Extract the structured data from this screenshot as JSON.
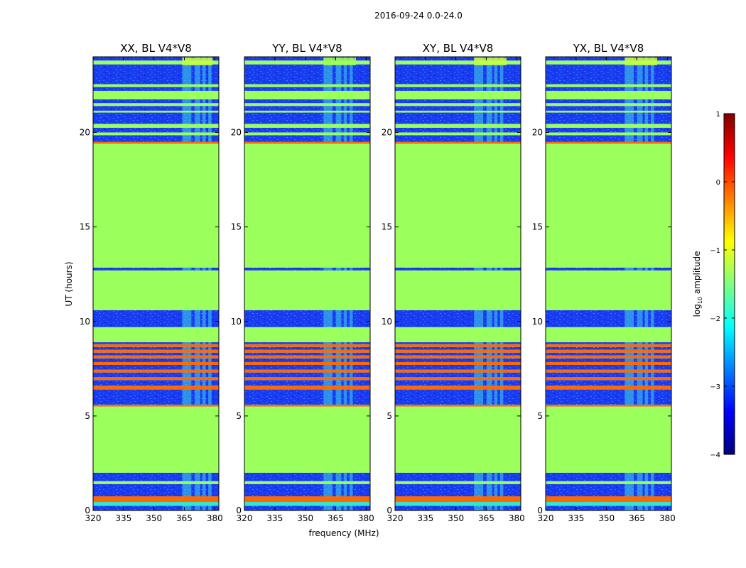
{
  "chart_data": {
    "type": "heatmap",
    "title": "2016-09-24 0.0-24.0",
    "xlabel": "frequency (MHz)",
    "ylabel": "UT (hours)",
    "xlim": [
      320,
      382
    ],
    "ylim": [
      0,
      24
    ],
    "x_ticks": [
      320,
      335,
      350,
      365,
      380
    ],
    "y_ticks": [
      0,
      5,
      10,
      15,
      20
    ],
    "panels": [
      {
        "title": "XX, BL V4*V8",
        "polarization": "XX",
        "rfi_band_mhz": [
          364,
          380
        ],
        "rfi_top_mhz": [
          364,
          379
        ]
      },
      {
        "title": "YY, BL V4*V8",
        "polarization": "YY",
        "rfi_band_mhz": [
          359,
          375
        ],
        "rfi_top_mhz": [
          359,
          375
        ]
      },
      {
        "title": "XY, BL V4*V8",
        "polarization": "XY",
        "rfi_band_mhz": [
          359,
          375
        ],
        "rfi_top_mhz": [
          359,
          375
        ]
      },
      {
        "title": "YX, BL V4*V8",
        "polarization": "YX",
        "rfi_band_mhz": [
          359,
          375
        ],
        "rfi_top_mhz": [
          359,
          375
        ]
      }
    ],
    "rows_hours": [
      {
        "from": 0.0,
        "to": 0.25,
        "level": "noise"
      },
      {
        "from": 0.25,
        "to": 0.45,
        "level": "cyan"
      },
      {
        "from": 0.45,
        "to": 0.75,
        "level": "orange"
      },
      {
        "from": 0.75,
        "to": 1.4,
        "level": "noise"
      },
      {
        "from": 1.4,
        "to": 1.55,
        "level": "green"
      },
      {
        "from": 1.55,
        "to": 2.0,
        "level": "noise"
      },
      {
        "from": 2.0,
        "to": 5.5,
        "level": "green"
      },
      {
        "from": 5.5,
        "to": 5.6,
        "level": "orange"
      },
      {
        "from": 5.6,
        "to": 6.4,
        "level": "noise"
      },
      {
        "from": 6.4,
        "to": 6.6,
        "level": "orange"
      },
      {
        "from": 6.6,
        "to": 6.9,
        "level": "noise"
      },
      {
        "from": 6.9,
        "to": 7.05,
        "level": "orange"
      },
      {
        "from": 7.05,
        "to": 7.3,
        "level": "noise"
      },
      {
        "from": 7.3,
        "to": 7.45,
        "level": "orange"
      },
      {
        "from": 7.45,
        "to": 7.7,
        "level": "noise"
      },
      {
        "from": 7.7,
        "to": 7.85,
        "level": "orange"
      },
      {
        "from": 7.85,
        "to": 8.05,
        "level": "noise"
      },
      {
        "from": 8.05,
        "to": 8.2,
        "level": "orange"
      },
      {
        "from": 8.2,
        "to": 8.35,
        "level": "noise"
      },
      {
        "from": 8.35,
        "to": 8.5,
        "level": "orange"
      },
      {
        "from": 8.5,
        "to": 8.65,
        "level": "noise"
      },
      {
        "from": 8.65,
        "to": 8.8,
        "level": "orange"
      },
      {
        "from": 8.8,
        "to": 8.9,
        "level": "noise"
      },
      {
        "from": 8.9,
        "to": 9.7,
        "level": "green"
      },
      {
        "from": 9.7,
        "to": 10.6,
        "level": "noise"
      },
      {
        "from": 10.6,
        "to": 12.7,
        "level": "green"
      },
      {
        "from": 12.7,
        "to": 12.85,
        "level": "noise"
      },
      {
        "from": 12.85,
        "to": 19.4,
        "level": "green"
      },
      {
        "from": 19.4,
        "to": 19.5,
        "level": "orange"
      },
      {
        "from": 19.5,
        "to": 19.85,
        "level": "noise"
      },
      {
        "from": 19.85,
        "to": 20.0,
        "level": "green"
      },
      {
        "from": 20.0,
        "to": 20.25,
        "level": "noise"
      },
      {
        "from": 20.25,
        "to": 20.45,
        "level": "green"
      },
      {
        "from": 20.45,
        "to": 21.05,
        "level": "noise"
      },
      {
        "from": 21.05,
        "to": 21.15,
        "level": "green"
      },
      {
        "from": 21.15,
        "to": 21.4,
        "level": "noise"
      },
      {
        "from": 21.4,
        "to": 21.55,
        "level": "green"
      },
      {
        "from": 21.55,
        "to": 21.75,
        "level": "noise"
      },
      {
        "from": 21.75,
        "to": 22.2,
        "level": "green"
      },
      {
        "from": 22.2,
        "to": 22.4,
        "level": "noise"
      },
      {
        "from": 22.4,
        "to": 22.55,
        "level": "green"
      },
      {
        "from": 22.55,
        "to": 23.6,
        "level": "noise"
      },
      {
        "from": 23.6,
        "to": 23.8,
        "level": "green"
      },
      {
        "from": 23.8,
        "to": 24.0,
        "level": "noise"
      }
    ],
    "colorbar": {
      "label": "log10 amplitude",
      "label_main": "log",
      "label_sub": "10",
      "label_rest": " amplitude",
      "range": [
        -4,
        1
      ],
      "ticks": [
        "1",
        "0",
        "−1",
        "−2",
        "−3",
        "−4"
      ],
      "tick_values": [
        1,
        0,
        -1,
        -2,
        -3,
        -4
      ],
      "colormap": "jet",
      "stops": [
        "#00007f",
        "#0000ff",
        "#007fff",
        "#00ffff",
        "#7fff7f",
        "#ffff00",
        "#ff7f00",
        "#ff0000",
        "#7f0000"
      ]
    },
    "level_colors": {
      "noise": "#1a3cf0",
      "noise_light": "#2a78ff",
      "cyan": "#33e6d0",
      "green": "#9bff5c",
      "orange": "#ff6a00",
      "yellow": "#f0ff30"
    }
  }
}
